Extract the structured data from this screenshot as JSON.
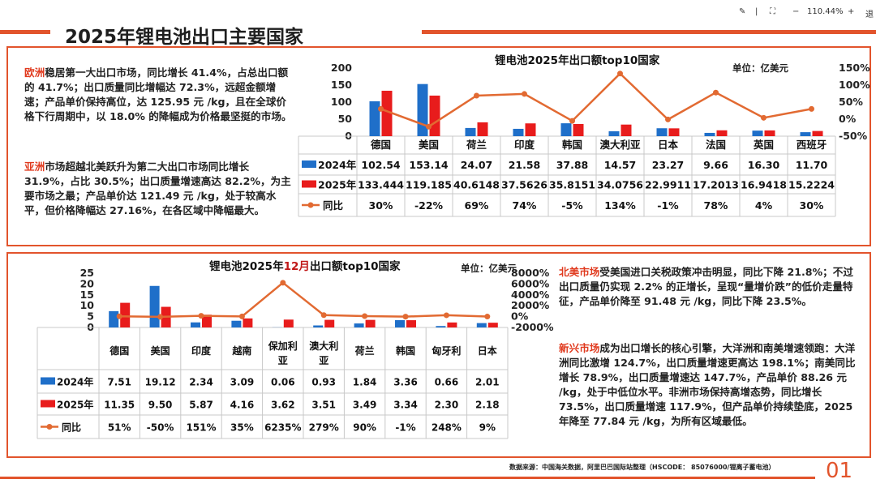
{
  "toolbar": {
    "zoom": "110.44%",
    "minus": "−",
    "plus": "+",
    "exit": "退"
  },
  "page": {
    "title": "2025年锂电池出口主要国家",
    "number": "01"
  },
  "text1": {
    "europe_head": "欧洲",
    "europe_body": "稳居第一大出口市场，同比增长 41.4%，占总出口额的 41.7%；出口质量同比增幅达 72.3%，远超金额增速；产品单价保持高位，达 125.95 元 /kg，且在全球价格下行周期中，以 18.0% 的降幅成为价格最坚挺的市场。",
    "asia_head": "亚洲",
    "asia_body": "市场超越北美跃升为第二大出口市场同比增长 31.9%，占比 30.5%；出口质量增速高达 82.2%，为主要市场之最；产品单价达 121.49 元 /kg，处于较高水平，但价格降幅达 27.16%，在各区域中降幅最大。"
  },
  "text2": {
    "na_head": "北美市场",
    "na_body": "受美国进口关税政策冲击明显，同比下降 21.8%；不过出口质量仍实现 2.2% 的正增长，呈现“量增价跌”的低价走量特征，产品单价降至 91.48 元 /kg，同比下降 23.5%。",
    "em_head": "新兴市场",
    "em_body": "成为出口增长的核心引擎，大洋洲和南美增速领跑：大洋洲同比激增 124.7%，出口质量增速更高达 198.1%；南美同比增长 78.9%，出口质量增速达 147.7%，产品单价 88.26 元 /kg，处于中低位水平。非洲市场保持高增态势，同比增长 73.5%，出口质量增速 117.9%，但产品单价持续垫底，2025 年降至 77.84 元 /kg，为所有区域最低。"
  },
  "chart1_meta": {
    "title": "锂电池2025年出口额top10国家",
    "unit": "单位：亿美元",
    "row_2024": "2024年",
    "row_2025": "2025年",
    "row_yoy": "同比",
    "yoy_labels": [
      "30%",
      "-22%",
      "69%",
      "74%",
      "-5%",
      "134%",
      "-1%",
      "78%",
      "4%",
      "30%"
    ],
    "val_2024_labels": [
      "102.54",
      "153.14",
      "24.07",
      "21.58",
      "37.88",
      "14.57",
      "23.27",
      "9.66",
      "16.30",
      "11.70"
    ],
    "val_2025_labels": [
      "133.444",
      "119.185",
      "40.6148",
      "37.5626",
      "35.8151",
      "34.0756",
      "22.9911",
      "17.2013",
      "16.9418",
      "15.2224"
    ]
  },
  "chart2_meta": {
    "title_a": "锂电池2025年",
    "title_b": "12月",
    "title_c": "出口额top10国家",
    "unit": "单位：亿美元",
    "row_2024": "2024年",
    "row_2025": "2025年",
    "row_yoy": "同比",
    "yoy_labels": [
      "51%",
      "-50%",
      "151%",
      "35%",
      "6235%",
      "279%",
      "90%",
      "-1%",
      "248%",
      "9%"
    ],
    "val_2024_labels": [
      "7.51",
      "19.12",
      "2.34",
      "3.09",
      "0.06",
      "0.93",
      "1.84",
      "3.36",
      "0.66",
      "2.01"
    ],
    "val_2025_labels": [
      "11.35",
      "9.50",
      "5.87",
      "4.16",
      "3.62",
      "3.51",
      "3.49",
      "3.34",
      "2.30",
      "2.18"
    ]
  },
  "chart_data": [
    {
      "type": "bar",
      "title": "锂电池2025年出口额top10国家",
      "categories": [
        "德国",
        "美国",
        "荷兰",
        "印度",
        "韩国",
        "澳大利亚",
        "日本",
        "法国",
        "英国",
        "西班牙"
      ],
      "series": [
        {
          "name": "2024年",
          "color": "#1f6fc9",
          "values": [
            102.54,
            153.14,
            24.07,
            21.58,
            37.88,
            14.57,
            23.27,
            9.66,
            16.3,
            11.7
          ]
        },
        {
          "name": "2025年",
          "color": "#e81c1c",
          "values": [
            133.444,
            119.185,
            40.6148,
            37.5626,
            35.8151,
            34.0756,
            22.9911,
            17.2013,
            16.9418,
            15.2224
          ]
        },
        {
          "name": "同比",
          "color": "#e26a32",
          "axis": "right",
          "values": [
            30,
            -22,
            69,
            74,
            -5,
            134,
            -1,
            78,
            4,
            30
          ]
        }
      ],
      "ylim": [
        0,
        200
      ],
      "yticks": [
        "200",
        "150",
        "100",
        "50",
        "0"
      ],
      "y2lim": [
        -50,
        150
      ],
      "y2ticks": [
        "150%",
        "100%",
        "50%",
        "0%",
        "-50%"
      ],
      "ylabel": "亿美元"
    },
    {
      "type": "bar",
      "title": "锂电池2025年12月出口额top10国家",
      "categories": [
        "德国",
        "美国",
        "印度",
        "越南",
        "保加利亚",
        "澳大利亚",
        "荷兰",
        "韩国",
        "匈牙利",
        "日本"
      ],
      "series": [
        {
          "name": "2024年",
          "color": "#1f6fc9",
          "values": [
            7.51,
            19.12,
            2.34,
            3.09,
            0.06,
            0.93,
            1.84,
            3.36,
            0.66,
            2.01
          ]
        },
        {
          "name": "2025年",
          "color": "#e81c1c",
          "values": [
            11.35,
            9.5,
            5.87,
            4.16,
            3.62,
            3.51,
            3.49,
            3.34,
            2.3,
            2.18
          ]
        },
        {
          "name": "同比",
          "color": "#e26a32",
          "axis": "right",
          "values": [
            51,
            -50,
            151,
            35,
            6235,
            279,
            90,
            -1,
            248,
            9
          ]
        }
      ],
      "ylim": [
        0,
        25
      ],
      "yticks": [
        "25",
        "20",
        "15",
        "10",
        "5",
        "0"
      ],
      "y2lim": [
        -2000,
        8000
      ],
      "y2ticks": [
        "8000%",
        "6000%",
        "4000%",
        "2000%",
        "0%",
        "-2000%"
      ],
      "ylabel": "亿美元"
    }
  ],
  "source": "数据来源：中国海关数据，阿里巴巴国际站整理（HSCODE： 85076000/锂离子蓄电池）"
}
